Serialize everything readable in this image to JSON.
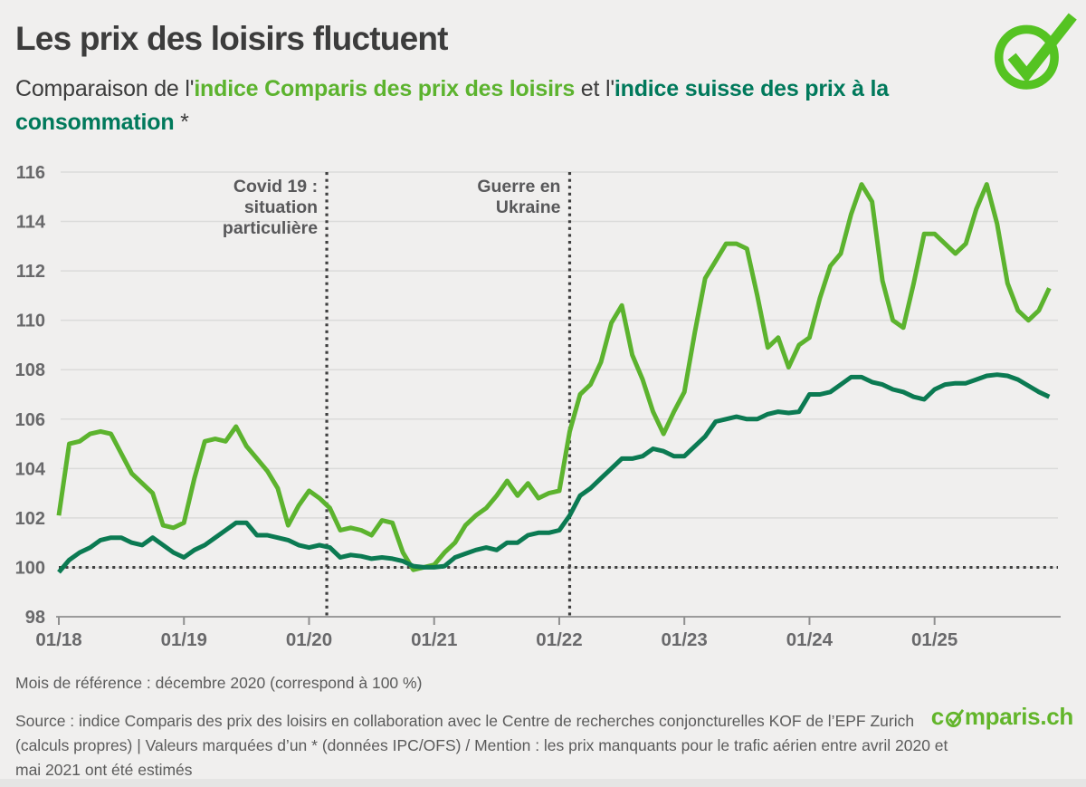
{
  "header": {
    "title": "Les prix des loisirs fluctuent",
    "subtitle_parts": [
      {
        "text": "Comparaison de l'",
        "style": "plain"
      },
      {
        "text": "indice Comparis des prix des loisirs",
        "style": "light-green-bold"
      },
      {
        "text": " et l'",
        "style": "plain"
      },
      {
        "text": "indice suisse des prix à la consommation",
        "style": "dark-green-bold"
      },
      {
        "text": " *",
        "style": "plain"
      }
    ],
    "logo": "comparis-check-icon"
  },
  "chart_data": {
    "type": "line",
    "title": "Comparaison de l'indice Comparis des prix des loisirs et l'indice suisse des prix à la consommation",
    "x_start": "2018-01",
    "x_end": "2025-12",
    "x_tick_labels": [
      "01/18",
      "01/19",
      "01/20",
      "01/21",
      "01/22",
      "01/23",
      "01/24",
      "01/25"
    ],
    "y_ticks": [
      98,
      100,
      102,
      104,
      106,
      108,
      110,
      112,
      114,
      116
    ],
    "ylim": [
      98,
      116
    ],
    "grid": "horizontal",
    "legend_position": "none",
    "reference_line": {
      "value": 100,
      "style": "dotted"
    },
    "colors": {
      "leisure": "#5cb32e",
      "cpi": "#0b7a52",
      "annotation": "#3f3f3f"
    },
    "series": [
      {
        "name": "indice Comparis des prix des loisirs",
        "color_key": "leisure",
        "values": [
          102.1,
          105.0,
          105.1,
          105.4,
          105.5,
          105.4,
          104.6,
          103.8,
          103.4,
          103.0,
          101.7,
          101.6,
          101.8,
          103.6,
          105.1,
          105.2,
          105.1,
          105.7,
          104.9,
          104.4,
          103.9,
          103.2,
          101.7,
          102.5,
          103.1,
          102.8,
          102.4,
          101.5,
          101.6,
          101.5,
          101.3,
          101.9,
          101.8,
          100.6,
          99.9,
          100.0,
          100.1,
          100.6,
          101.0,
          101.7,
          102.1,
          102.4,
          102.9,
          103.5,
          102.9,
          103.4,
          102.8,
          103.0,
          103.1,
          105.5,
          107.0,
          107.4,
          108.3,
          109.9,
          110.6,
          108.6,
          107.6,
          106.3,
          105.4,
          106.3,
          107.1,
          109.5,
          111.7,
          112.4,
          113.1,
          113.1,
          112.9,
          111.0,
          108.9,
          109.3,
          108.1,
          109.0,
          109.3,
          110.9,
          112.2,
          112.7,
          114.3,
          115.5,
          114.8,
          111.6,
          110.0,
          109.7,
          111.5,
          113.5,
          113.5,
          113.1,
          112.7,
          113.1,
          114.5,
          115.5,
          113.9,
          111.5,
          110.4,
          110.0,
          110.4,
          111.3
        ]
      },
      {
        "name": "indice suisse des prix à la consommation",
        "color_key": "cpi",
        "values": [
          99.8,
          100.3,
          100.6,
          100.8,
          101.1,
          101.2,
          101.2,
          101.0,
          100.9,
          101.2,
          100.9,
          100.6,
          100.4,
          100.7,
          100.9,
          101.2,
          101.5,
          101.8,
          101.8,
          101.3,
          101.3,
          101.2,
          101.1,
          100.9,
          100.8,
          100.9,
          100.8,
          100.4,
          100.5,
          100.45,
          100.35,
          100.4,
          100.35,
          100.25,
          100.05,
          100.0,
          100.0,
          100.05,
          100.4,
          100.55,
          100.7,
          100.8,
          100.7,
          101.0,
          101.0,
          101.3,
          101.4,
          101.4,
          101.5,
          102.1,
          102.9,
          103.2,
          103.6,
          104.0,
          104.4,
          104.4,
          104.5,
          104.8,
          104.7,
          104.5,
          104.5,
          104.9,
          105.3,
          105.9,
          106.0,
          106.1,
          106.0,
          106.0,
          106.2,
          106.3,
          106.25,
          106.3,
          107.0,
          107.0,
          107.1,
          107.4,
          107.7,
          107.7,
          107.5,
          107.4,
          107.2,
          107.1,
          106.9,
          106.8,
          107.2,
          107.4,
          107.45,
          107.45,
          107.6,
          107.75,
          107.8,
          107.75,
          107.6,
          107.35,
          107.1,
          106.9
        ]
      }
    ],
    "annotations": [
      {
        "id": "covid",
        "lines": [
          "Covid 19 :",
          "situation",
          "particulière"
        ],
        "month_index": 25.7
      },
      {
        "id": "ukraine",
        "lines": [
          "Guerre en",
          "Ukraine"
        ],
        "month_index": 49.0
      }
    ]
  },
  "footer": {
    "reference_note": "Mois de référence : décembre 2020 (correspond à 100 %)",
    "source_note": "Source : indice Comparis des prix des loisirs en collaboration avec le Centre de recherches conjoncturelles KOF de l’EPF Zurich (calculs propres) | Valeurs marquées d’un * (données IPC/OFS) / Mention : les prix manquants pour le trafic aérien entre avril 2020 et mai 2021 ont été estimés",
    "brand": {
      "prefix": "c",
      "suffix": "mparis.ch"
    }
  }
}
